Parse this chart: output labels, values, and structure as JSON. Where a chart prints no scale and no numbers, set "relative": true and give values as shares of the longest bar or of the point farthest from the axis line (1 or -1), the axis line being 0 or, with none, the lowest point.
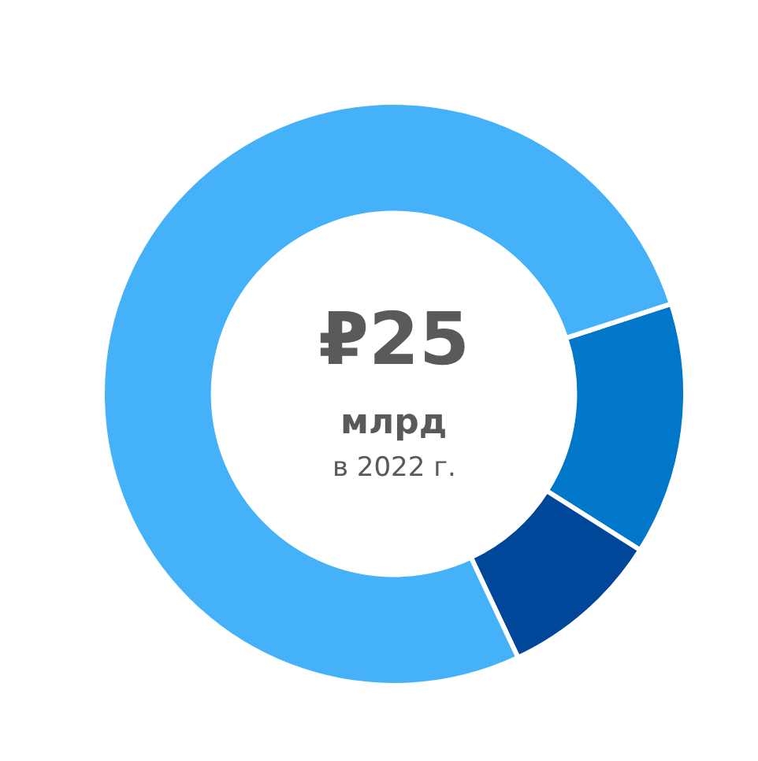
{
  "chart_data": {
    "type": "donut",
    "relative": true,
    "categories": [
      null,
      null,
      null
    ],
    "values": [
      14,
      9,
      77
    ],
    "colors": [
      "#0077c8",
      "#00479a",
      "#45b1f8"
    ],
    "annotations": [
      "₽25",
      "млрд",
      "в 2022 г."
    ],
    "legend": false
  }
}
